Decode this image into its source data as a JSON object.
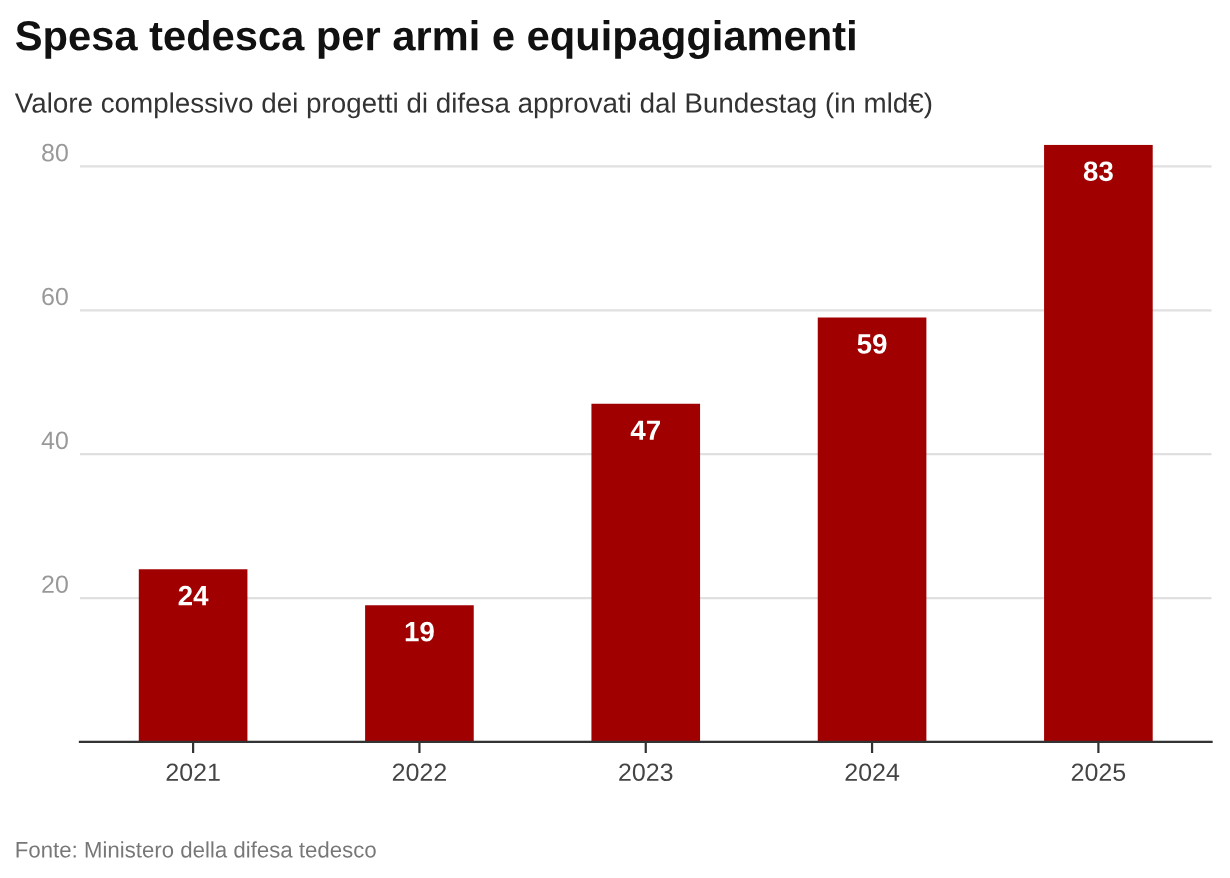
{
  "chart_data": {
    "type": "bar",
    "title": "Spesa tedesca per armi e equipaggiamenti",
    "subtitle": "Valore complessivo dei progetti di difesa approvati dal Bundestag (in mld€)",
    "categories": [
      "2021",
      "2022",
      "2023",
      "2024",
      "2025"
    ],
    "values": [
      24,
      19,
      47,
      59,
      83
    ],
    "color": "#a00000",
    "ylim": [
      0,
      83
    ],
    "yticks": [
      {
        "value": 0,
        "label": null
      },
      20,
      40,
      60,
      80
    ],
    "grid": "y",
    "data_labels": true,
    "annotations": [
      "Fonte: Ministero della difesa tedesco"
    ]
  }
}
